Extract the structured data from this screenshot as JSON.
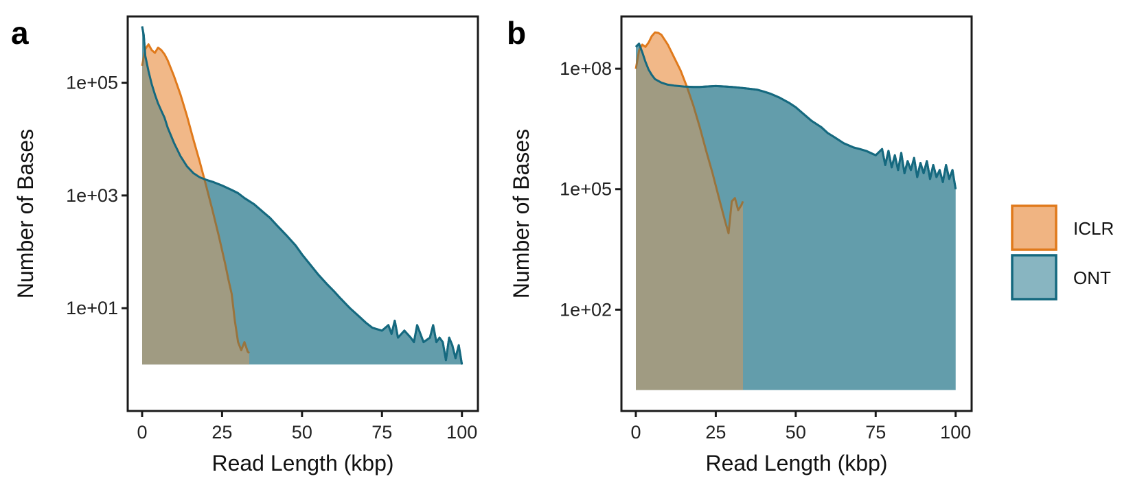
{
  "figure": {
    "legend_position": "right",
    "legend": [
      {
        "name": "ICLR",
        "fill": "#F0B482",
        "stroke": "#E07A1C"
      },
      {
        "name": "ONT",
        "fill": "#88B5C1",
        "stroke": "#15697F"
      }
    ]
  },
  "chart_data": [
    {
      "panel_label": "a",
      "type": "area",
      "title": "",
      "xlabel": "Read Length (kbp)",
      "ylabel": "Number of Bases",
      "y_scale": "log10",
      "xlim": [
        -4.5,
        105
      ],
      "ylim": [
        0.15,
        1500000
      ],
      "xticks": [
        {
          "v": 0,
          "label": "0"
        },
        {
          "v": 25,
          "label": "25"
        },
        {
          "v": 50,
          "label": "50"
        },
        {
          "v": 75,
          "label": "75"
        },
        {
          "v": 100,
          "label": "100"
        }
      ],
      "yticks": [
        {
          "v": 10,
          "label": "1e+01"
        },
        {
          "v": 1000,
          "label": "1e+03"
        },
        {
          "v": 100000,
          "label": "1e+05"
        }
      ],
      "baseline": 1,
      "grid": false,
      "series": [
        {
          "name": "ICLR",
          "x": [
            0,
            1,
            2,
            3,
            4,
            5,
            6,
            7,
            8,
            10,
            12,
            14,
            16,
            18,
            20,
            22,
            24,
            26,
            27,
            28,
            29,
            30,
            31,
            32,
            33,
            33.5
          ],
          "y": [
            200000,
            400000,
            480000,
            380000,
            340000,
            420000,
            380000,
            320000,
            250000,
            130000,
            62000,
            26000,
            10000,
            4000,
            1500,
            550,
            190,
            60,
            32,
            18,
            6,
            2.5,
            1.8,
            2.5,
            1.7,
            1.6
          ]
        },
        {
          "name": "ONT",
          "x": [
            0,
            0.5,
            1,
            2,
            3,
            4,
            5,
            6,
            7,
            8,
            10,
            12,
            14,
            16,
            18,
            20,
            22,
            25,
            28,
            30,
            32,
            35,
            38,
            40,
            42,
            45,
            48,
            50,
            52,
            55,
            58,
            60,
            62,
            65,
            68,
            70,
            72,
            75,
            77,
            78,
            79,
            80,
            82,
            84,
            85,
            86,
            88,
            90,
            91,
            92,
            93,
            94,
            95,
            96,
            97,
            98,
            99,
            100
          ],
          "y": [
            1000000,
            700000,
            300000,
            160000,
            95000,
            62000,
            43000,
            32000,
            24000,
            16000,
            8500,
            5000,
            3300,
            2500,
            2100,
            1900,
            1750,
            1500,
            1250,
            1100,
            900,
            700,
            500,
            400,
            300,
            200,
            130,
            90,
            65,
            40,
            26,
            20,
            15,
            10,
            7,
            5.5,
            4.5,
            4,
            5,
            3.5,
            6,
            3,
            4,
            3,
            2.5,
            5,
            2.5,
            3,
            5,
            2.5,
            3,
            2.5,
            1.2,
            3,
            2.2,
            1.3,
            2.2,
            1
          ]
        }
      ]
    },
    {
      "panel_label": "b",
      "type": "area",
      "title": "",
      "xlabel": "Read Length (kbp)",
      "ylabel": "Number of Bases",
      "y_scale": "log10",
      "xlim": [
        -4.5,
        105
      ],
      "ylim": [
        0.3,
        2000000000
      ],
      "xticks": [
        {
          "v": 0,
          "label": "0"
        },
        {
          "v": 25,
          "label": "25"
        },
        {
          "v": 50,
          "label": "50"
        },
        {
          "v": 75,
          "label": "75"
        },
        {
          "v": 100,
          "label": "100"
        }
      ],
      "yticks": [
        {
          "v": 100,
          "label": "1e+02"
        },
        {
          "v": 100000,
          "label": "1e+05"
        },
        {
          "v": 100000000,
          "label": "1e+08"
        }
      ],
      "baseline": 1,
      "grid": false,
      "series": [
        {
          "name": "ICLR",
          "x": [
            0,
            1,
            2,
            3,
            4,
            5,
            6,
            7,
            8,
            10,
            12,
            14,
            16,
            18,
            20,
            22,
            24,
            26,
            28,
            29,
            30,
            31,
            32,
            33,
            33.5
          ],
          "y": [
            100000000,
            280000000,
            400000000,
            350000000,
            450000000,
            650000000,
            800000000,
            780000000,
            700000000,
            400000000,
            190000000,
            90000000,
            35000000,
            12000000,
            3500000,
            900000,
            250000,
            60000,
            15000,
            8000,
            50000,
            60000,
            30000,
            40000,
            50000
          ]
        },
        {
          "name": "ONT",
          "x": [
            0,
            1,
            2,
            3,
            4,
            5,
            6,
            8,
            10,
            12,
            15,
            18,
            20,
            22,
            25,
            28,
            30,
            32,
            35,
            38,
            40,
            42,
            45,
            48,
            50,
            52,
            55,
            58,
            60,
            62,
            65,
            68,
            70,
            72,
            75,
            77,
            78,
            79,
            80,
            81,
            82,
            83,
            84,
            85,
            86,
            87,
            88,
            89,
            90,
            91,
            92,
            93,
            94,
            95,
            96,
            97,
            98,
            99,
            100
          ],
          "y": [
            350000000,
            420000000,
            260000000,
            150000000,
            95000000,
            70000000,
            55000000,
            45000000,
            40000000,
            38000000,
            36000000,
            35000000,
            35000000,
            36000000,
            37000000,
            36000000,
            35000000,
            34000000,
            32000000,
            30000000,
            27000000,
            24000000,
            19000000,
            14000000,
            11000000,
            8000000,
            5000000,
            3500000,
            2500000,
            2000000,
            1400000,
            1100000,
            1000000,
            900000,
            700000,
            1000000,
            400000,
            900000,
            350000,
            700000,
            300000,
            800000,
            250000,
            500000,
            300000,
            600000,
            200000,
            450000,
            250000,
            500000,
            180000,
            400000,
            200000,
            300000,
            150000,
            400000,
            180000,
            300000,
            100000
          ]
        }
      ]
    }
  ]
}
